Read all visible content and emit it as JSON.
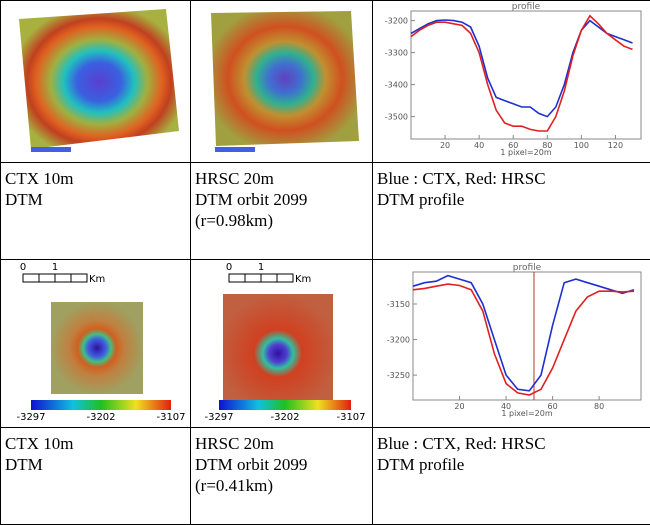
{
  "row1": {
    "captions": [
      [
        "CTX 10m",
        "DTM"
      ],
      [
        "HRSC 20m",
        "DTM orbit 2099",
        "(r=0.98km)"
      ],
      [
        "Blue : CTX, Red: HRSC",
        "DTM profile"
      ]
    ],
    "chart": {
      "type": "line",
      "title": "profile",
      "xlabel": "1 pixel=20m",
      "x": [
        0,
        5,
        10,
        15,
        20,
        25,
        30,
        35,
        40,
        45,
        50,
        55,
        60,
        65,
        70,
        75,
        80,
        85,
        90,
        95,
        100,
        105,
        110,
        115,
        120,
        125,
        130
      ],
      "series": [
        {
          "color": "#1f2fd0",
          "values": [
            -3240,
            -3225,
            -3210,
            -3200,
            -3198,
            -3200,
            -3205,
            -3220,
            -3280,
            -3380,
            -3440,
            -3450,
            -3460,
            -3470,
            -3470,
            -3490,
            -3500,
            -3470,
            -3400,
            -3300,
            -3230,
            -3200,
            -3220,
            -3240,
            -3250,
            -3260,
            -3270
          ]
        },
        {
          "color": "#e02020",
          "values": [
            -3250,
            -3230,
            -3215,
            -3205,
            -3205,
            -3210,
            -3215,
            -3240,
            -3300,
            -3400,
            -3480,
            -3520,
            -3530,
            -3530,
            -3540,
            -3545,
            -3545,
            -3500,
            -3420,
            -3310,
            -3230,
            -3185,
            -3210,
            -3240,
            -3260,
            -3280,
            -3290
          ]
        }
      ],
      "xlim": [
        0,
        135
      ],
      "xticks": [
        20,
        40,
        60,
        80,
        100,
        120
      ],
      "ylim": [
        -3570,
        -3170
      ],
      "yticks": [
        -3200,
        -3300,
        -3400,
        -3500
      ]
    }
  },
  "row2": {
    "scale_bars": [
      {
        "ticks": [
          0,
          1
        ],
        "unit": "Km"
      },
      {
        "ticks": [
          0,
          1
        ],
        "unit": "Km"
      }
    ],
    "colorbars": [
      {
        "labels": [
          -3297,
          -3202,
          -3107
        ]
      },
      {
        "labels": [
          -3297,
          -3202,
          -3107
        ]
      }
    ],
    "captions": [
      [
        "CTX 10m",
        "DTM"
      ],
      [
        "HRSC 20m",
        "DTM orbit 2099",
        "(r=0.41km)"
      ],
      [
        "Blue : CTX, Red: HRSC",
        "DTM profile"
      ]
    ],
    "chart": {
      "type": "line",
      "title": "profile",
      "xlabel": "1 pixel=20m",
      "x": [
        0,
        5,
        10,
        15,
        20,
        25,
        30,
        35,
        40,
        45,
        50,
        55,
        60,
        65,
        70,
        75,
        80,
        85,
        90,
        95
      ],
      "series": [
        {
          "color": "#1f2fd0",
          "values": [
            -3125,
            -3120,
            -3118,
            -3110,
            -3115,
            -3120,
            -3150,
            -3200,
            -3250,
            -3270,
            -3272,
            -3250,
            -3180,
            -3120,
            -3115,
            -3120,
            -3125,
            -3130,
            -3135,
            -3130
          ]
        },
        {
          "color": "#e02020",
          "values": [
            -3130,
            -3128,
            -3125,
            -3122,
            -3124,
            -3130,
            -3160,
            -3220,
            -3262,
            -3275,
            -3278,
            -3270,
            -3240,
            -3200,
            -3160,
            -3140,
            -3132,
            -3132,
            -3133,
            -3132
          ]
        }
      ],
      "vline": 52,
      "xlim": [
        0,
        98
      ],
      "xticks": [
        20,
        40,
        60,
        80
      ],
      "ylim": [
        -3285,
        -3105
      ],
      "yticks": [
        -3150,
        -3200,
        -3250
      ]
    }
  }
}
